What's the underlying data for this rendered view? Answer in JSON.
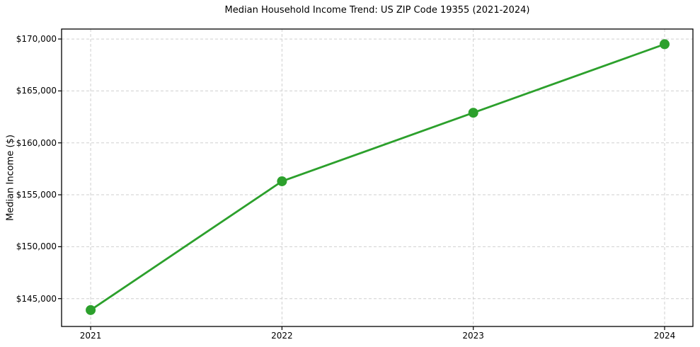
{
  "chart_data": {
    "type": "line",
    "title": "Median Household Income Trend: US ZIP Code 19355 (2021-2024)",
    "xlabel": "",
    "ylabel": "Median Income ($)",
    "x": [
      2021,
      2022,
      2023,
      2024
    ],
    "values": [
      143900,
      156300,
      162900,
      169500
    ],
    "x_ticks": [
      {
        "value": 2021,
        "label": "2021"
      },
      {
        "value": 2022,
        "label": "2022"
      },
      {
        "value": 2023,
        "label": "2023"
      },
      {
        "value": 2024,
        "label": "2024"
      }
    ],
    "y_ticks": [
      {
        "value": 145000,
        "label": "$145,000"
      },
      {
        "value": 150000,
        "label": "$150,000"
      },
      {
        "value": 155000,
        "label": "$155,000"
      },
      {
        "value": 160000,
        "label": "$160,000"
      },
      {
        "value": 165000,
        "label": "$165,000"
      },
      {
        "value": 170000,
        "label": "$170,000"
      }
    ],
    "xlim": [
      2020.848,
      2024.148
    ],
    "ylim": [
      142320,
      170960
    ],
    "grid": "dashed",
    "legend": "none",
    "line_color": "#2ca02c",
    "grid_color": "#cfcfcf",
    "text_color": "#000000",
    "marker": "circle"
  }
}
